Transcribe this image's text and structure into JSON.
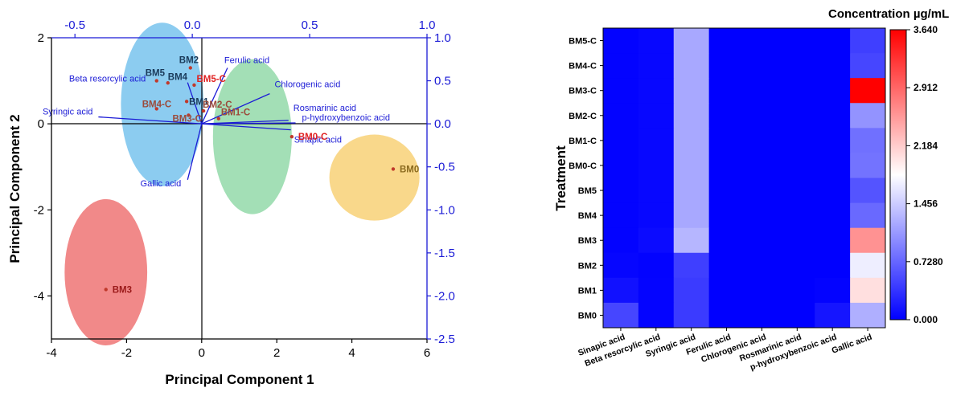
{
  "chart_data": [
    {
      "type": "scatter",
      "subtype": "biplot",
      "xlabel": "Principal Component 1",
      "ylabel": "Principal Component 2",
      "xlim": [
        -4,
        6
      ],
      "ylim": [
        -5,
        2
      ],
      "xticks": [
        "-4",
        "-2",
        "0",
        "2",
        "4",
        "6"
      ],
      "yticks": [
        "2",
        "0",
        "-2",
        "-4"
      ],
      "top_axis": {
        "lim": [
          -0.6,
          1.0
        ],
        "ticks": [
          "-0.5",
          "0.0",
          "0.5",
          "1.0"
        ],
        "color": "#1b1bd6"
      },
      "right_axis": {
        "lim": [
          -2.5,
          1.0
        ],
        "ticks": [
          "1.0",
          "0.5",
          "0.0",
          "-0.5",
          "-1.0",
          "-1.5",
          "-2.0",
          "-2.5"
        ],
        "color": "#1b1bd6"
      },
      "ellipses": [
        {
          "group": "BM0",
          "cx": 4.6,
          "cy": -1.25,
          "rx": 1.2,
          "ry": 1.0,
          "color": "#f7c95e"
        },
        {
          "group": "BM3",
          "cx": -2.55,
          "cy": -3.45,
          "rx": 1.1,
          "ry": 1.7,
          "color": "#ec5b5b"
        },
        {
          "group": "left",
          "cx": -1.05,
          "cy": 0.45,
          "rx": 1.1,
          "ry": 1.9,
          "color": "#5fb8ea"
        },
        {
          "group": "middle",
          "cx": 1.35,
          "cy": -0.3,
          "rx": 1.05,
          "ry": 1.8,
          "color": "#7fd29a"
        }
      ],
      "observations": [
        {
          "label": "BM0",
          "x": 5.1,
          "y": -1.05,
          "color": "#8b6a1e"
        },
        {
          "label": "BM0-C",
          "x": 2.4,
          "y": -0.3,
          "color": "#e02020"
        },
        {
          "label": "BM1",
          "x": -0.4,
          "y": 0.52,
          "color": "#1a3a5a"
        },
        {
          "label": "BM1-C",
          "x": 0.45,
          "y": 0.12,
          "color": "#9b4a3a"
        },
        {
          "label": "BM2",
          "x": -0.3,
          "y": 1.3,
          "color": "#1a3a5a"
        },
        {
          "label": "BM2-C",
          "x": 0.05,
          "y": 0.3,
          "color": "#9b4a3a"
        },
        {
          "label": "BM3",
          "x": -2.55,
          "y": -3.85,
          "color": "#9b1a1a"
        },
        {
          "label": "BM3-C",
          "x": -0.35,
          "y": 0.2,
          "color": "#9b4a3a"
        },
        {
          "label": "BM4",
          "x": -0.9,
          "y": 0.95,
          "color": "#1a3a5a"
        },
        {
          "label": "BM4-C",
          "x": -1.2,
          "y": 0.35,
          "color": "#9b4a3a"
        },
        {
          "label": "BM5",
          "x": -1.2,
          "y": 1.0,
          "color": "#1a3a5a"
        },
        {
          "label": "BM5-C",
          "x": -0.2,
          "y": 0.9,
          "color": "#e02020"
        }
      ],
      "loadings": [
        {
          "label": "Ferulic acid",
          "x": 0.15,
          "y": 0.65
        },
        {
          "label": "Chlorogenic acid",
          "x": 0.33,
          "y": 0.35
        },
        {
          "label": "Beta resorcylic acid",
          "x": -0.02,
          "y": 0.48
        },
        {
          "label": "Syringic acid",
          "x": -0.4,
          "y": 0.08
        },
        {
          "label": "Rosmarinic acid",
          "x": 0.41,
          "y": 0.04
        },
        {
          "label": "p-hydroxybenzoic acid",
          "x": 0.44,
          "y": 0.01
        },
        {
          "label": "Sinapic acid",
          "x": 0.42,
          "y": -0.07
        },
        {
          "label": "Gallic acid",
          "x": -0.02,
          "y": -0.65
        }
      ]
    },
    {
      "type": "heatmap",
      "ylabel": "Treatment",
      "rows": [
        "BM5-C",
        "BM4-C",
        "BM3-C",
        "BM2-C",
        "BM1-C",
        "BM0-C",
        "BM5",
        "BM4",
        "BM3",
        "BM2",
        "BM1",
        "BM0"
      ],
      "columns": [
        "Sinapic acid",
        "Beta resorcylic acid",
        "Syringic acid",
        "Ferulic acid",
        "Chlorogenic acid",
        "Rosmarinic acid",
        "p-hydroxybenzoic acid",
        "Gallic acid"
      ],
      "values": [
        [
          0.02,
          0.05,
          1.2,
          0.0,
          0.0,
          0.0,
          0.0,
          0.45
        ],
        [
          0.02,
          0.05,
          1.2,
          0.0,
          0.0,
          0.0,
          0.0,
          0.5
        ],
        [
          0.02,
          0.05,
          1.2,
          0.0,
          0.0,
          0.0,
          0.0,
          3.64
        ],
        [
          0.02,
          0.05,
          1.2,
          0.0,
          0.0,
          0.0,
          0.0,
          1.05
        ],
        [
          0.02,
          0.05,
          1.2,
          0.0,
          0.0,
          0.0,
          0.0,
          0.8
        ],
        [
          0.02,
          0.05,
          1.2,
          0.0,
          0.0,
          0.0,
          0.0,
          0.82
        ],
        [
          0.02,
          0.05,
          1.2,
          0.0,
          0.0,
          0.0,
          0.0,
          0.6
        ],
        [
          0.02,
          0.05,
          1.2,
          0.0,
          0.0,
          0.0,
          0.0,
          0.75
        ],
        [
          0.02,
          0.08,
          1.3,
          0.0,
          0.0,
          0.0,
          0.0,
          2.6
        ],
        [
          0.04,
          0.02,
          0.45,
          0.0,
          0.0,
          0.0,
          0.0,
          1.7
        ],
        [
          0.12,
          0.03,
          0.42,
          0.0,
          0.0,
          0.0,
          0.02,
          2.05
        ],
        [
          0.5,
          0.03,
          0.42,
          0.0,
          0.0,
          0.0,
          0.15,
          1.25
        ]
      ],
      "colorbar": {
        "title": "Concentration µg/mL",
        "min": 0.0,
        "max": 3.64,
        "ticks": [
          "3.640",
          "2.912",
          "2.184",
          "1.456",
          "0.7280",
          "0.000"
        ],
        "low_color": "#0000ff",
        "mid_color": "#ffffff",
        "high_color": "#ff0000"
      }
    }
  ]
}
